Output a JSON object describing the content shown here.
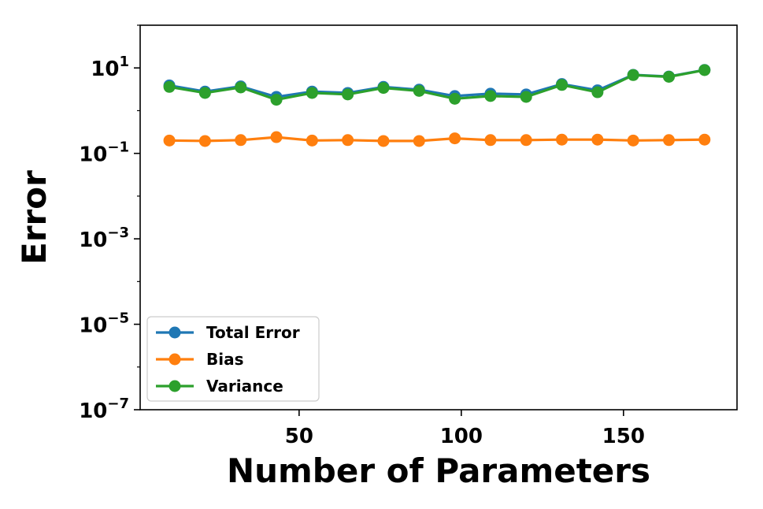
{
  "chart_data": {
    "type": "line",
    "xlabel": "Number of Parameters",
    "ylabel": "Error",
    "xlim": [
      1,
      185
    ],
    "ylim": [
      1e-07,
      100
    ],
    "yscale": "log",
    "x_ticks": [
      50,
      100,
      150
    ],
    "x_tick_labels": [
      "50",
      "100",
      "150"
    ],
    "y_ticks": [
      {
        "value": 10,
        "base": "10",
        "exp": "1"
      },
      {
        "value": 0.1,
        "base": "10",
        "exp": "−1"
      },
      {
        "value": 0.001,
        "base": "10",
        "exp": "−3"
      },
      {
        "value": 1e-05,
        "base": "10",
        "exp": "−5"
      },
      {
        "value": 1e-07,
        "base": "10",
        "exp": "−7"
      }
    ],
    "grid": false,
    "legend_position": "lower-left",
    "x": [
      10,
      21,
      32,
      43,
      54,
      65,
      76,
      87,
      98,
      109,
      120,
      131,
      142,
      153,
      164,
      175
    ],
    "series": [
      {
        "name": "Total Error",
        "color": "#1f77b4",
        "values": [
          3.9,
          2.8,
          3.7,
          2.1,
          2.8,
          2.6,
          3.6,
          3.1,
          2.2,
          2.5,
          2.4,
          4.2,
          3.0,
          6.9,
          6.3,
          9.0
        ]
      },
      {
        "name": "Bias",
        "color": "#ff7f0e",
        "values": [
          0.2,
          0.195,
          0.205,
          0.24,
          0.2,
          0.205,
          0.195,
          0.195,
          0.225,
          0.205,
          0.205,
          0.21,
          0.21,
          0.2,
          0.205,
          0.21
        ]
      },
      {
        "name": "Variance",
        "color": "#2ca02c",
        "values": [
          3.6,
          2.6,
          3.5,
          1.8,
          2.6,
          2.4,
          3.4,
          2.9,
          1.9,
          2.2,
          2.1,
          4.0,
          2.7,
          6.8,
          6.2,
          8.9
        ]
      }
    ]
  }
}
